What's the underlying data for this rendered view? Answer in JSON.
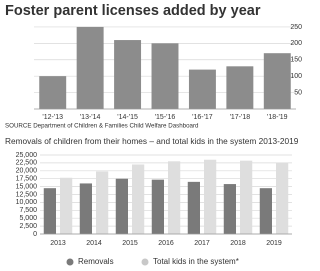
{
  "chart_data": [
    {
      "type": "bar",
      "title": "Foster parent licenses added by year",
      "categories": [
        "'12-'13",
        "'13-'14",
        "'14-'15",
        "'15-'16",
        "'16-'17",
        "'17-'18",
        "'18-'19"
      ],
      "values": [
        100,
        250,
        210,
        200,
        120,
        130,
        170
      ],
      "color": "#8c8c8c",
      "ylim": [
        0,
        265
      ],
      "yticks": [
        50,
        100,
        150,
        200,
        250
      ],
      "grid": true,
      "source": "SOURCE  Department of Children & Families Child Welfare Dashboard"
    },
    {
      "type": "grouped-bar",
      "title": "Removals of children from their homes – and total kids in the system 2013-2019",
      "categories": [
        "2013",
        "2014",
        "2015",
        "2016",
        "2017",
        "2018",
        "2019"
      ],
      "series": [
        {
          "name": "Removals",
          "color": "#7a7a7a",
          "values": [
            14500,
            16000,
            17500,
            17200,
            16500,
            15800,
            14500
          ]
        },
        {
          "name": "Total kids in the system*",
          "color": "#dedede",
          "values": [
            17800,
            19800,
            22000,
            23000,
            23500,
            23200,
            22500
          ]
        }
      ],
      "ylim": [
        0,
        25000
      ],
      "yticks": [
        0,
        {
          "value": 2500,
          "label": "2,500"
        },
        {
          "value": 5000,
          "label": "5,000"
        },
        {
          "value": 7500,
          "label": "7,500"
        },
        {
          "value": 10000,
          "label": "10,000"
        },
        {
          "value": 12500,
          "label": "12,500"
        },
        {
          "value": 15000,
          "label": "15,000"
        },
        {
          "value": 17500,
          "label": "17,500"
        },
        {
          "value": 20000,
          "label": "20,000"
        },
        {
          "value": 22500,
          "label": "22,500"
        },
        {
          "value": 25000,
          "label": "25,000"
        }
      ],
      "grid": true,
      "legend": "bottom"
    }
  ]
}
